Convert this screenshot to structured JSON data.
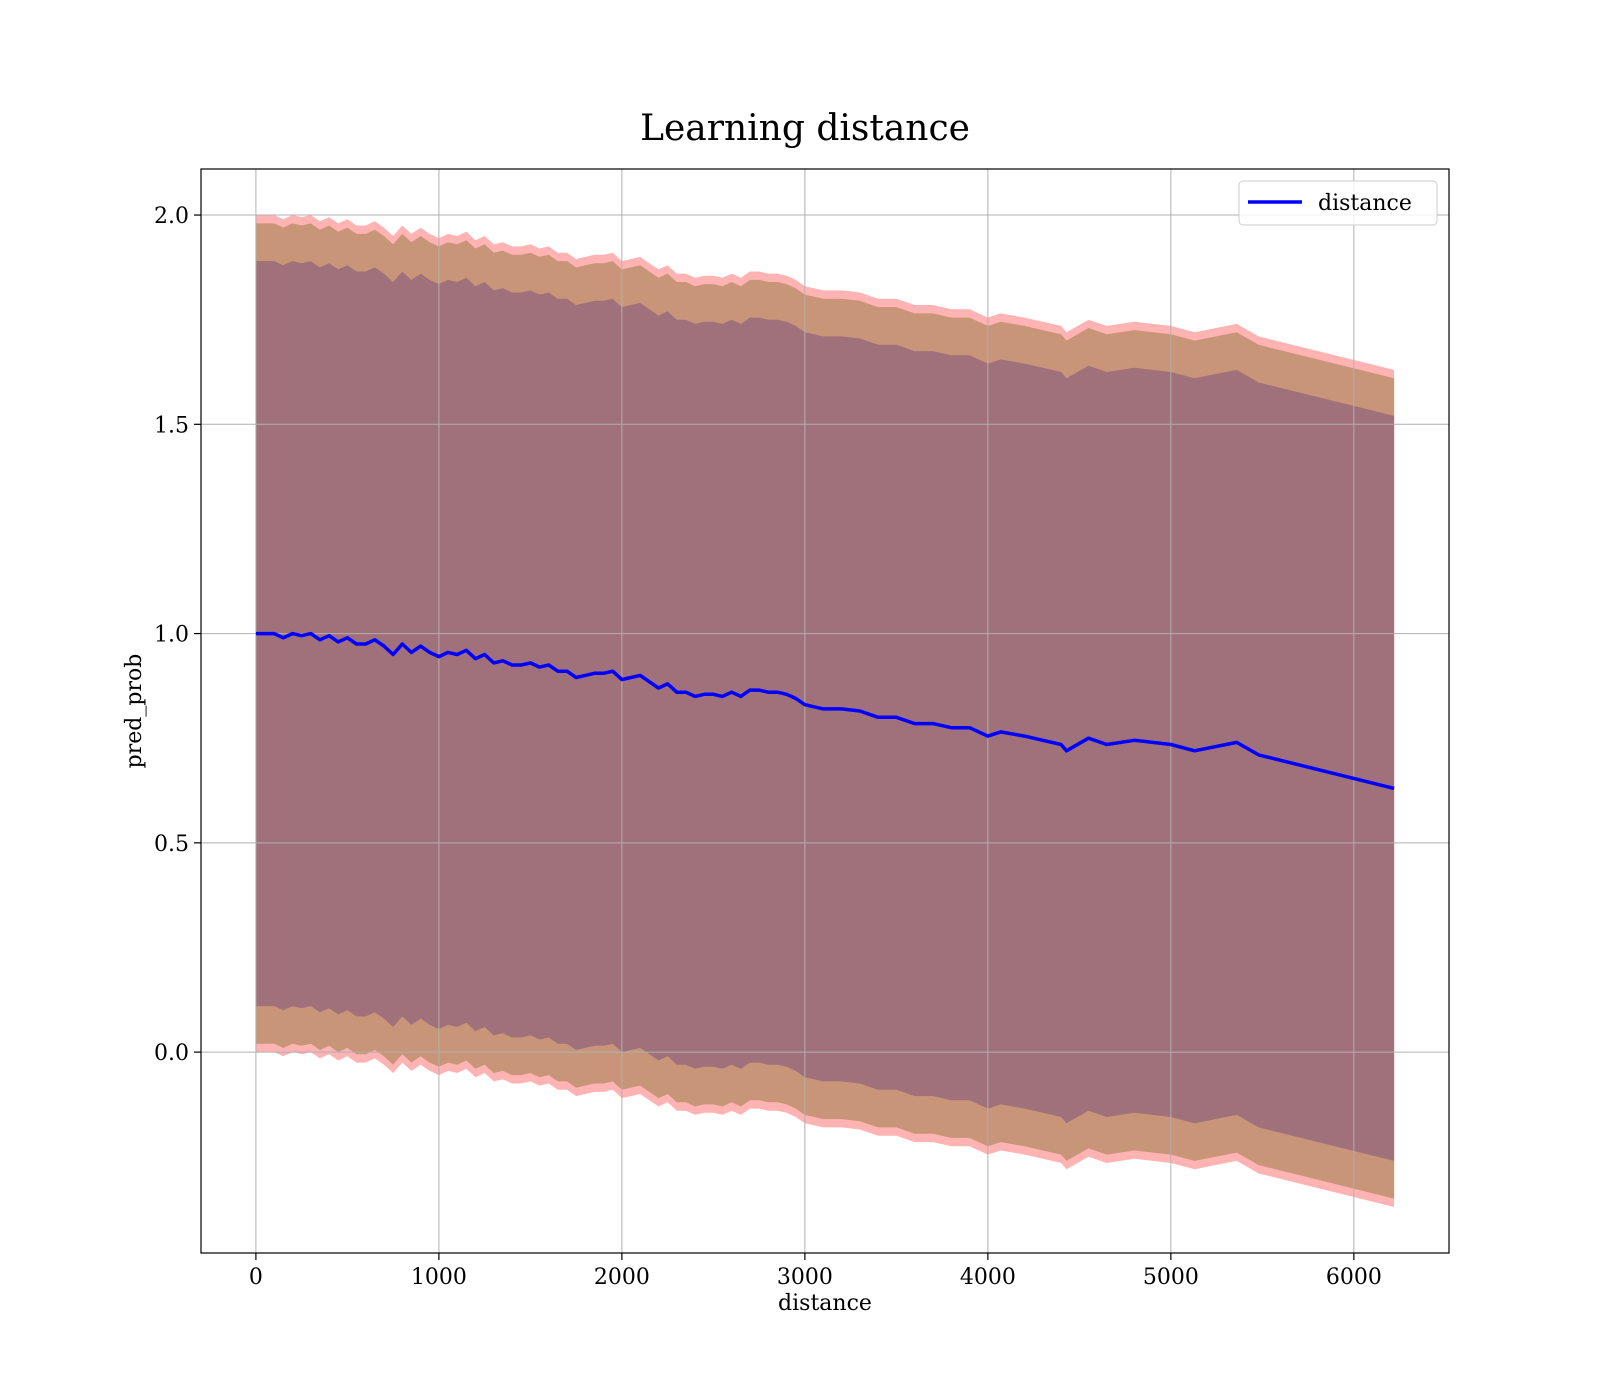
{
  "chart_data": {
    "type": "line",
    "title": "Learning distance",
    "xlabel": "distance",
    "ylabel": "pred_prob",
    "xlim": [
      -300,
      6520
    ],
    "ylim": [
      -0.48,
      2.11
    ],
    "xticks": [
      0,
      1000,
      2000,
      3000,
      4000,
      5000,
      6000
    ],
    "yticks": [
      0.0,
      0.5,
      1.0,
      1.5,
      2.0
    ],
    "xtick_labels": [
      "0",
      "1000",
      "2000",
      "3000",
      "4000",
      "5000",
      "6000"
    ],
    "ytick_labels": [
      "0.0",
      "0.5",
      "1.0",
      "1.5",
      "2.0"
    ],
    "grid": true,
    "legend": {
      "position": "top-right",
      "entries": [
        "distance"
      ]
    },
    "colors": {
      "line": "#0000ff",
      "band_outer": "#ffb3b3",
      "band_middle": "#c89579",
      "band_inner": "#a0717a",
      "grid": "#b0b0b0"
    },
    "series": [
      {
        "name": "distance",
        "x": [
          0,
          50,
          100,
          150,
          200,
          250,
          300,
          350,
          400,
          450,
          500,
          550,
          600,
          650,
          700,
          750,
          800,
          850,
          900,
          950,
          1000,
          1050,
          1100,
          1150,
          1200,
          1250,
          1300,
          1350,
          1400,
          1450,
          1500,
          1550,
          1600,
          1650,
          1700,
          1750,
          1800,
          1850,
          1900,
          1950,
          2000,
          2050,
          2100,
          2150,
          2200,
          2250,
          2300,
          2350,
          2400,
          2450,
          2500,
          2550,
          2600,
          2650,
          2700,
          2750,
          2800,
          2850,
          2900,
          2950,
          3000,
          3100,
          3200,
          3300,
          3400,
          3500,
          3600,
          3700,
          3800,
          3900,
          4000,
          4070,
          4200,
          4300,
          4400,
          4430,
          4550,
          4650,
          4800,
          5000,
          5130,
          5360,
          5480,
          6220
        ],
        "values": [
          1.0,
          1.0,
          1.0,
          0.99,
          1.0,
          0.995,
          1.0,
          0.985,
          0.995,
          0.98,
          0.99,
          0.975,
          0.975,
          0.985,
          0.97,
          0.95,
          0.975,
          0.955,
          0.97,
          0.955,
          0.945,
          0.955,
          0.95,
          0.96,
          0.94,
          0.95,
          0.93,
          0.935,
          0.925,
          0.925,
          0.93,
          0.92,
          0.925,
          0.91,
          0.91,
          0.895,
          0.9,
          0.905,
          0.905,
          0.91,
          0.89,
          0.895,
          0.9,
          0.885,
          0.87,
          0.88,
          0.86,
          0.86,
          0.85,
          0.855,
          0.855,
          0.85,
          0.86,
          0.85,
          0.865,
          0.865,
          0.86,
          0.86,
          0.855,
          0.845,
          0.83,
          0.82,
          0.82,
          0.815,
          0.8,
          0.8,
          0.785,
          0.785,
          0.775,
          0.775,
          0.755,
          0.765,
          0.755,
          0.745,
          0.735,
          0.72,
          0.75,
          0.735,
          0.745,
          0.735,
          0.72,
          0.74,
          0.71,
          0.63
        ]
      }
    ],
    "bands": [
      {
        "name": "outer",
        "offset": 1.0
      },
      {
        "name": "middle",
        "offset": 0.98
      },
      {
        "name": "inner",
        "offset": 0.89
      }
    ]
  }
}
